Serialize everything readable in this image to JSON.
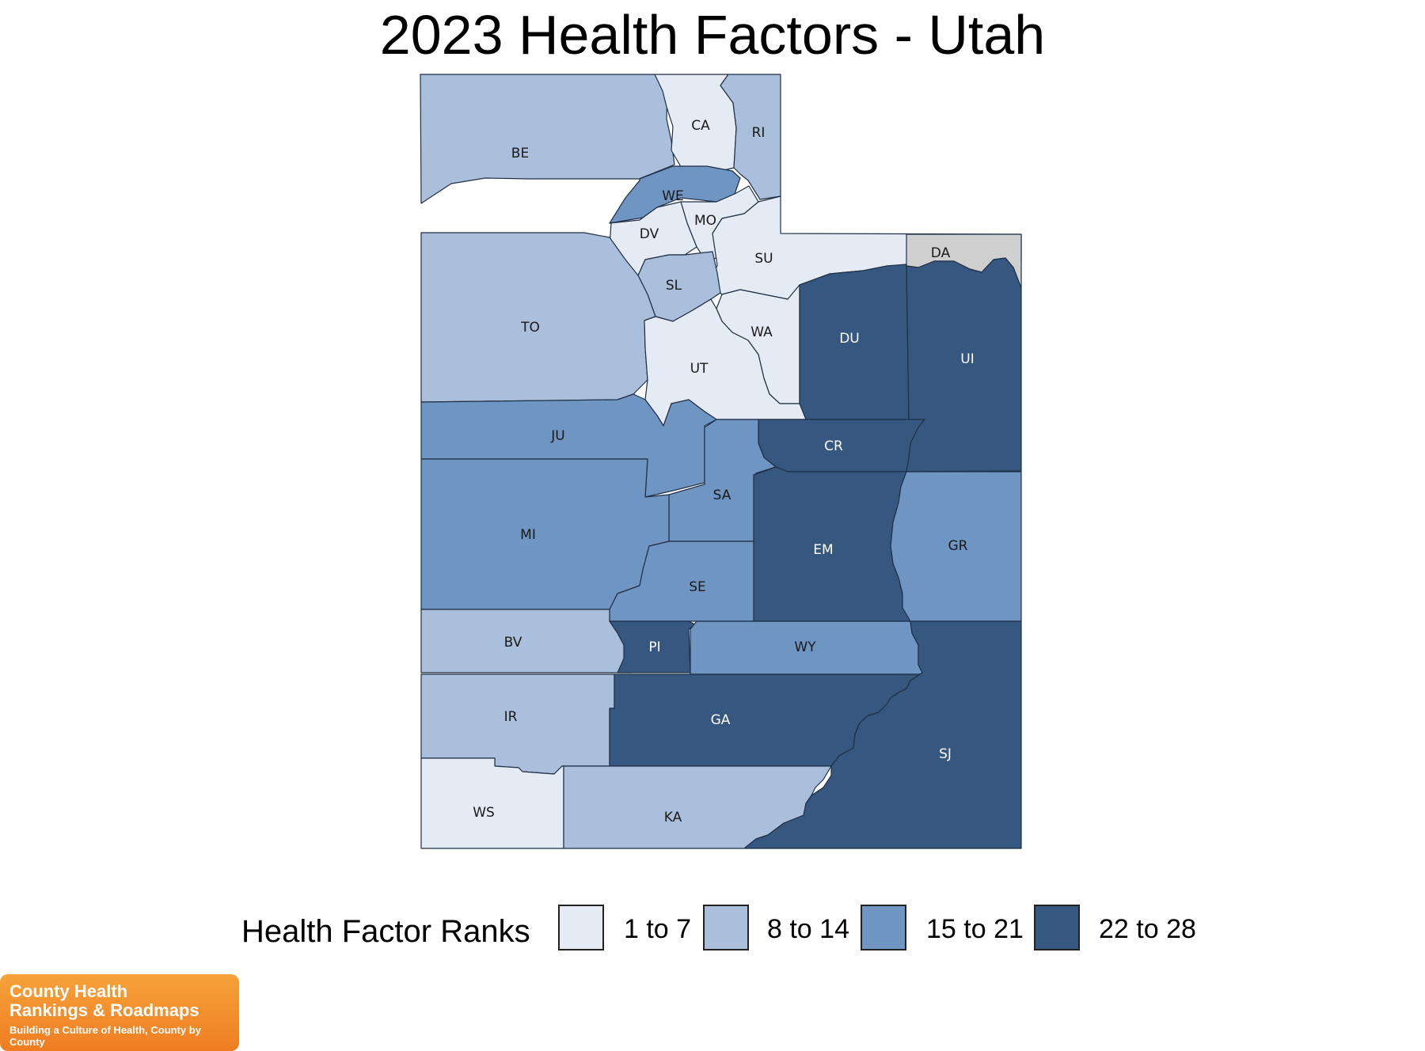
{
  "title": "2023 Health Factors - Utah",
  "colors": {
    "1 to 7": "#e4ebf4",
    "8 to 14": "#aabfdb",
    "15 to 21": "#6f95c3",
    "22 to 28": "#36577f",
    "no data": "#cfcfcf"
  },
  "counties": [
    {
      "abbr": "BE",
      "bucket": "8 to 14"
    },
    {
      "abbr": "CA",
      "bucket": "1 to 7"
    },
    {
      "abbr": "RI",
      "bucket": "8 to 14"
    },
    {
      "abbr": "WE",
      "bucket": "15 to 21"
    },
    {
      "abbr": "MO",
      "bucket": "1 to 7"
    },
    {
      "abbr": "DV",
      "bucket": "1 to 7"
    },
    {
      "abbr": "SU",
      "bucket": "1 to 7"
    },
    {
      "abbr": "DA",
      "bucket": "no data"
    },
    {
      "abbr": "SL",
      "bucket": "8 to 14"
    },
    {
      "abbr": "TO",
      "bucket": "8 to 14"
    },
    {
      "abbr": "WA",
      "bucket": "1 to 7"
    },
    {
      "abbr": "UT",
      "bucket": "1 to 7"
    },
    {
      "abbr": "DU",
      "bucket": "22 to 28"
    },
    {
      "abbr": "UI",
      "bucket": "22 to 28"
    },
    {
      "abbr": "JU",
      "bucket": "15 to 21"
    },
    {
      "abbr": "CR",
      "bucket": "22 to 28"
    },
    {
      "abbr": "SA",
      "bucket": "15 to 21"
    },
    {
      "abbr": "MI",
      "bucket": "15 to 21"
    },
    {
      "abbr": "EM",
      "bucket": "22 to 28"
    },
    {
      "abbr": "GR",
      "bucket": "15 to 21"
    },
    {
      "abbr": "SE",
      "bucket": "15 to 21"
    },
    {
      "abbr": "BV",
      "bucket": "8 to 14"
    },
    {
      "abbr": "PI",
      "bucket": "22 to 28"
    },
    {
      "abbr": "WY",
      "bucket": "15 to 21"
    },
    {
      "abbr": "IR",
      "bucket": "8 to 14"
    },
    {
      "abbr": "GA",
      "bucket": "22 to 28"
    },
    {
      "abbr": "SJ",
      "bucket": "22 to 28"
    },
    {
      "abbr": "WS",
      "bucket": "1 to 7"
    },
    {
      "abbr": "KA",
      "bucket": "8 to 14"
    }
  ],
  "legend": {
    "title": "Health Factor Ranks",
    "items": [
      {
        "label": "1 to 7",
        "color": "#e4ebf4"
      },
      {
        "label": "8 to 14",
        "color": "#aabfdb"
      },
      {
        "label": "15 to 21",
        "color": "#6f95c3"
      },
      {
        "label": "22 to 28",
        "color": "#36577f"
      }
    ]
  },
  "logo": {
    "line1": "County Health",
    "line2": "Rankings & Roadmaps",
    "tagline": "Building a Culture of Health, County by County"
  }
}
